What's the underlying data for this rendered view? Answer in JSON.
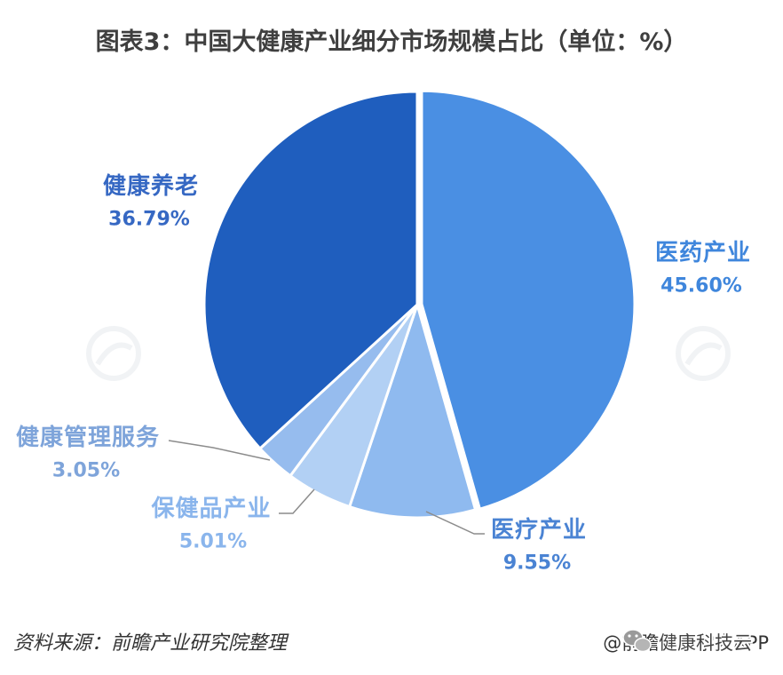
{
  "source": "资料来源：前瞻产业研究院整理",
  "credit": "@前瞻经济学人APP",
  "credit_overlay": "健康科技云",
  "chart_data": {
    "type": "pie",
    "title": "图表3：中国大健康产业细分市场规模占比（单位：%）",
    "legend": "none",
    "slices": [
      {
        "name": "医药产业",
        "value": 45.6,
        "color": "#4a8fe3",
        "label_color": "#3f86dc"
      },
      {
        "name": "医疗产业",
        "value": 9.55,
        "color": "#8fbaef",
        "label_color": "#4a83d3"
      },
      {
        "name": "保健品产业",
        "value": 5.01,
        "color": "#b2d0f4",
        "label_color": "#8ab5ec"
      },
      {
        "name": "健康管理服务",
        "value": 3.05,
        "color": "#96bcee",
        "label_color": "#7ea4da"
      },
      {
        "name": "健康养老",
        "value": 36.79,
        "color": "#1f5ebe",
        "label_color": "#3668c3"
      }
    ]
  }
}
